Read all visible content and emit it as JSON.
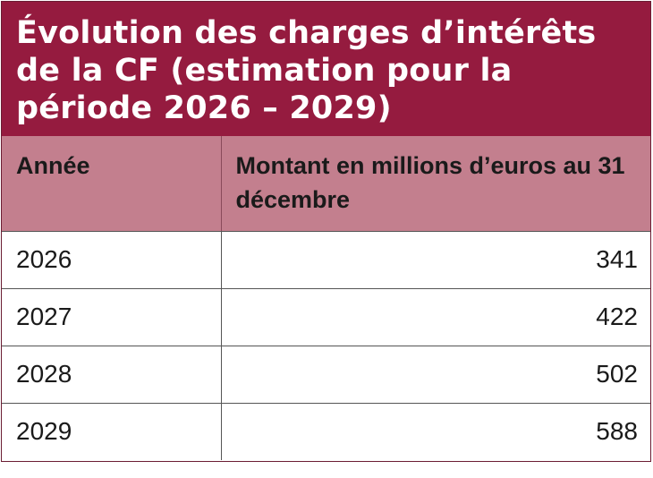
{
  "title": "Évolution des charges d’intérêts de la CF (estimation pour la période 2026 – 2029)",
  "table": {
    "headers": [
      "Année",
      "Montant en millions d’euros au 31 décembre"
    ],
    "rows": [
      {
        "year": "2026",
        "amount": "341"
      },
      {
        "year": "2027",
        "amount": "422"
      },
      {
        "year": "2028",
        "amount": "502"
      },
      {
        "year": "2029",
        "amount": "588"
      }
    ]
  },
  "colors": {
    "title_background": "#951b3f",
    "header_background": "#c37f8e",
    "title_text": "#ffffff"
  }
}
